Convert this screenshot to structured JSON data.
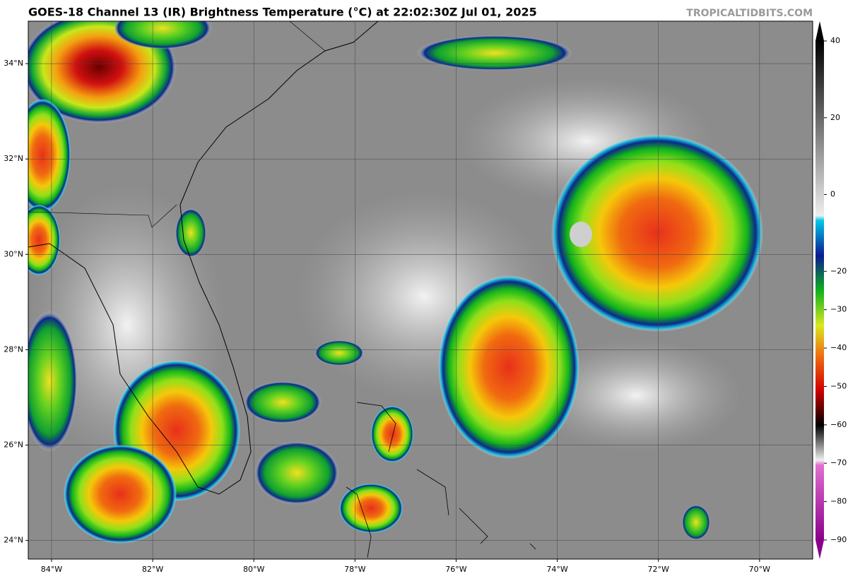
{
  "chart_data": {
    "type": "map",
    "title": "GOES-18 Channel 13 (IR) Brightness Temperature (°C) at 22:02:30Z Jul 01, 2025",
    "watermark": "TROPICALTIDBITS.COM",
    "xlim": [
      -84.46,
      -68.95
    ],
    "ylim": [
      23.61,
      34.89
    ],
    "xticks": [
      {
        "value": -84,
        "label": "84°W"
      },
      {
        "value": -82,
        "label": "82°W"
      },
      {
        "value": -80,
        "label": "80°W"
      },
      {
        "value": -78,
        "label": "78°W"
      },
      {
        "value": -76,
        "label": "76°W"
      },
      {
        "value": -74,
        "label": "74°W"
      },
      {
        "value": -72,
        "label": "72°W"
      },
      {
        "value": -70,
        "label": "70°W"
      }
    ],
    "yticks": [
      {
        "value": 24,
        "label": "24°N"
      },
      {
        "value": 26,
        "label": "26°N"
      },
      {
        "value": 28,
        "label": "28°N"
      },
      {
        "value": 30,
        "label": "30°N"
      },
      {
        "value": 32,
        "label": "32°N"
      },
      {
        "value": 34,
        "label": "34°N"
      }
    ],
    "colorbar": {
      "lim": [
        -90,
        40
      ],
      "ticks": [
        40,
        20,
        0,
        {
          "value": -20,
          "label": "−20"
        },
        {
          "value": -30,
          "label": "−30"
        },
        {
          "value": -40,
          "label": "−40"
        },
        {
          "value": -50,
          "label": "−50"
        },
        {
          "value": -60,
          "label": "−60"
        },
        {
          "value": -70,
          "label": "−70"
        },
        {
          "value": -80,
          "label": "−80"
        },
        {
          "value": -90,
          "label": "−90"
        }
      ]
    },
    "grid": true
  }
}
